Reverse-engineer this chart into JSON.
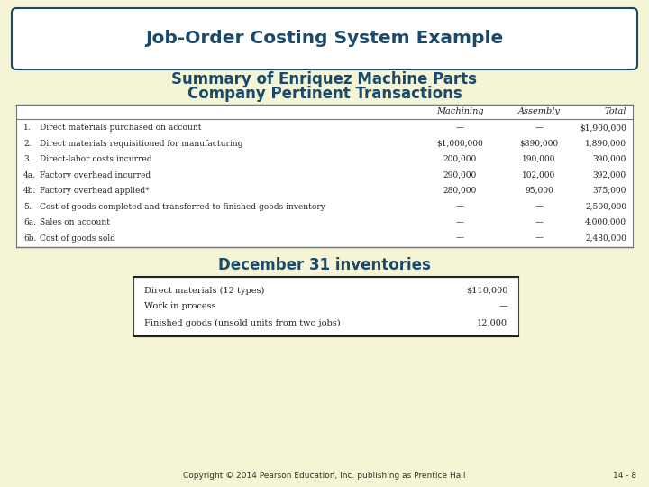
{
  "bg_color": "#f5f5d5",
  "title_box_text": "Job-Order Costing System Example",
  "subtitle_line1": "Summary of Enriquez Machine Parts",
  "subtitle_line2": "Company Pertinent Transactions",
  "title_color": "#1a4a6b",
  "header_cols": [
    "Machining",
    "Assembly",
    "Total"
  ],
  "main_table_rows": [
    {
      "num": "1.",
      "desc": "Direct materials purchased on account",
      "mach": "—",
      "assy": "—",
      "total": "$1,900,000"
    },
    {
      "num": "2.",
      "desc": "Direct materials requisitioned for manufacturing",
      "mach": "$1,000,000",
      "assy": "$890,000",
      "total": "1,890,000"
    },
    {
      "num": "3.",
      "desc": "Direct-labor costs incurred",
      "mach": "200,000",
      "assy": "190,000",
      "total": "390,000"
    },
    {
      "num": "4a.",
      "desc": "Factory overhead incurred",
      "mach": "290,000",
      "assy": "102,000",
      "total": "392,000"
    },
    {
      "num": "4b.",
      "desc": "Factory overhead applied*",
      "mach": "280,000",
      "assy": "95,000",
      "total": "375,000"
    },
    {
      "num": "5.",
      "desc": "Cost of goods completed and transferred to finished-goods inventory",
      "mach": "—",
      "assy": "—",
      "total": "2,500,000"
    },
    {
      "num": "6a.",
      "desc": "Sales on account",
      "mach": "—",
      "assy": "—",
      "total": "4,000,000"
    },
    {
      "num": "6b.",
      "desc": "Cost of goods sold",
      "mach": "—",
      "assy": "—",
      "total": "2,480,000"
    }
  ],
  "inv_title": "December 31 inventories",
  "inv_rows": [
    {
      "desc": "Direct materials (12 types)",
      "value": "$110,000"
    },
    {
      "desc": "Work in process",
      "value": "—"
    },
    {
      "desc": "Finished goods (unsold units from two jobs)",
      "value": "12,000"
    }
  ],
  "footer": "Copyright © 2014 Pearson Education, Inc. publishing as Prentice Hall",
  "page_num": "14 - 8",
  "table_text_color": "#222222",
  "table_border_color": "#777777",
  "inv_border_color": "#444444"
}
